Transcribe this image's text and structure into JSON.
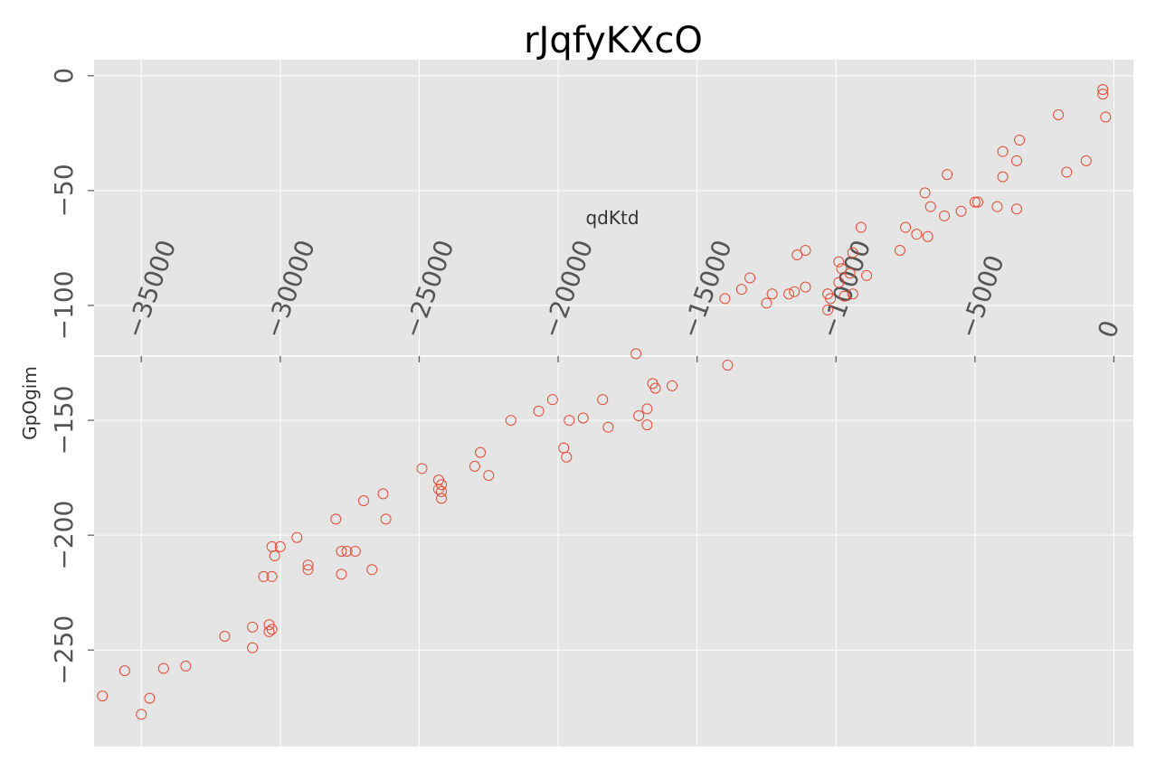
{
  "chart_data": {
    "type": "scatter",
    "title": "rJqfyKXcO",
    "xlabel": "qdKtd",
    "ylabel": "GpOgim",
    "xlim": [
      -36700,
      700
    ],
    "ylim": [
      -292,
      7
    ],
    "x_axis_position": "y=-122",
    "xticks": [
      -35000,
      -30000,
      -25000,
      -20000,
      -15000,
      -10000,
      -5000,
      0
    ],
    "xtick_labels": [
      "−35000",
      "−30000",
      "−25000",
      "−20000",
      "−15000",
      "−10000",
      "−5000",
      "0"
    ],
    "yticks": [
      0,
      -50,
      -100,
      -150,
      -200,
      -250
    ],
    "ytick_labels": [
      "0",
      "−50",
      "−100",
      "−150",
      "−200",
      "−250"
    ],
    "grid": true,
    "style": "ggplot",
    "colors": {
      "marker": "#e24a33",
      "panel": "#e5e5e5",
      "grid": "#ffffff"
    },
    "series": [
      {
        "marker": "open-circle",
        "points": [
          [
            -36400,
            -270
          ],
          [
            -35600,
            -259
          ],
          [
            -35000,
            -278
          ],
          [
            -34700,
            -271
          ],
          [
            -34200,
            -258
          ],
          [
            -33400,
            -257
          ],
          [
            -32000,
            -244
          ],
          [
            -31000,
            -240
          ],
          [
            -31000,
            -249
          ],
          [
            -30400,
            -239
          ],
          [
            -30400,
            -242
          ],
          [
            -30300,
            -241
          ],
          [
            -30300,
            -205
          ],
          [
            -30300,
            -218
          ],
          [
            -30200,
            -209
          ],
          [
            -30000,
            -205
          ],
          [
            -30600,
            -218
          ],
          [
            -29400,
            -201
          ],
          [
            -29000,
            -213
          ],
          [
            -29000,
            -215
          ],
          [
            -28000,
            -193
          ],
          [
            -27800,
            -217
          ],
          [
            -27800,
            -207
          ],
          [
            -27600,
            -207
          ],
          [
            -27300,
            -207
          ],
          [
            -27000,
            -185
          ],
          [
            -26700,
            -215
          ],
          [
            -26300,
            -182
          ],
          [
            -26200,
            -193
          ],
          [
            -24900,
            -171
          ],
          [
            -24300,
            -176
          ],
          [
            -24300,
            -180
          ],
          [
            -24200,
            -178
          ],
          [
            -24200,
            -181
          ],
          [
            -24200,
            -184
          ],
          [
            -23000,
            -170
          ],
          [
            -22800,
            -164
          ],
          [
            -22500,
            -174
          ],
          [
            -21700,
            -150
          ],
          [
            -20700,
            -146
          ],
          [
            -20200,
            -141
          ],
          [
            -19800,
            -162
          ],
          [
            -19700,
            -166
          ],
          [
            -19600,
            -150
          ],
          [
            -19100,
            -149
          ],
          [
            -18400,
            -141
          ],
          [
            -18200,
            -153
          ],
          [
            -17200,
            -121
          ],
          [
            -17100,
            -148
          ],
          [
            -16800,
            -152
          ],
          [
            -16800,
            -145
          ],
          [
            -16600,
            -134
          ],
          [
            -16500,
            -136
          ],
          [
            -15900,
            -135
          ],
          [
            -14000,
            -97
          ],
          [
            -13900,
            -126
          ],
          [
            -13400,
            -93
          ],
          [
            -13100,
            -88
          ],
          [
            -12500,
            -99
          ],
          [
            -12300,
            -95
          ],
          [
            -11700,
            -95
          ],
          [
            -11500,
            -94
          ],
          [
            -11400,
            -78
          ],
          [
            -11100,
            -92
          ],
          [
            -11100,
            -76
          ],
          [
            -10300,
            -102
          ],
          [
            -10300,
            -95
          ],
          [
            -10200,
            -97
          ],
          [
            -9900,
            -81
          ],
          [
            -9900,
            -90
          ],
          [
            -9800,
            -84
          ],
          [
            -9700,
            -96
          ],
          [
            -9500,
            -86
          ],
          [
            -9400,
            -77
          ],
          [
            -9400,
            -95
          ],
          [
            -9100,
            -66
          ],
          [
            -8900,
            -87
          ],
          [
            -7700,
            -76
          ],
          [
            -7500,
            -66
          ],
          [
            -7100,
            -69
          ],
          [
            -6800,
            -51
          ],
          [
            -6700,
            -70
          ],
          [
            -6600,
            -57
          ],
          [
            -6100,
            -61
          ],
          [
            -6000,
            -43
          ],
          [
            -5500,
            -59
          ],
          [
            -5000,
            -55
          ],
          [
            -4900,
            -55
          ],
          [
            -4200,
            -57
          ],
          [
            -4000,
            -33
          ],
          [
            -4000,
            -44
          ],
          [
            -3500,
            -37
          ],
          [
            -3500,
            -58
          ],
          [
            -3400,
            -28
          ],
          [
            -2000,
            -17
          ],
          [
            -1700,
            -42
          ],
          [
            -1000,
            -37
          ],
          [
            -400,
            -6
          ],
          [
            -400,
            -8
          ],
          [
            -300,
            -18
          ]
        ]
      }
    ]
  }
}
